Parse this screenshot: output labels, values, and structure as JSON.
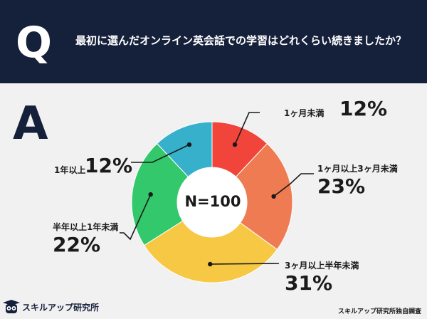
{
  "header": {
    "q_mark": "Q",
    "question": "最初に選んだオンライン英会話での学習はどれくらい続きましたか？"
  },
  "answer": {
    "a_mark": "A"
  },
  "center_label": "N=100",
  "chart_data": {
    "type": "pie",
    "donut": true,
    "categories": [
      "1ヶ月未満",
      "1ヶ月以上3ヶ月未満",
      "3ヶ月以上半年未満",
      "半年以上1年未満",
      "1年以上"
    ],
    "values": [
      12,
      23,
      31,
      22,
      12
    ],
    "labels": [
      "12%",
      "23%",
      "31%",
      "22%",
      "12%"
    ],
    "colors": [
      "#f1443a",
      "#ef7b52",
      "#f6c844",
      "#33c86b",
      "#37b1cb"
    ]
  },
  "footer": {
    "brand": "スキルアップ研究所",
    "source": "スキルアップ研究所独自調査"
  }
}
